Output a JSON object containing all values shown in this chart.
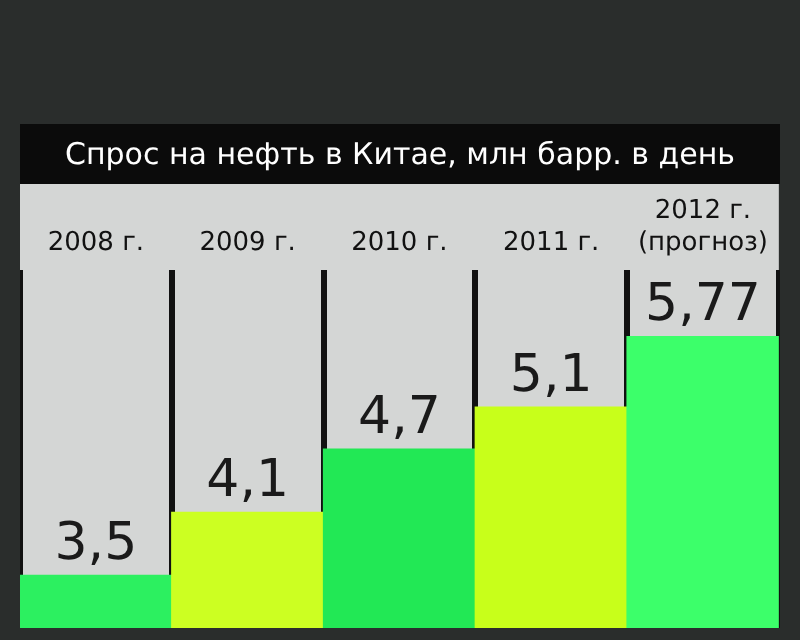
{
  "chart_data": {
    "type": "bar",
    "title": "Спрос на нефть в Китае, млн барр. в день",
    "categories": [
      "2008 г.",
      "2009 г.",
      "2010 г.",
      "2011 г.",
      "2012 г. (прогноз)"
    ],
    "values": [
      3.5,
      4.1,
      4.7,
      5.1,
      5.77
    ],
    "colors": [
      "#2cf060",
      "#ccff22",
      "#22e855",
      "#c8ff1a",
      "#3cff6a"
    ],
    "value_labels": [
      "3,5",
      "4,1",
      "4,7",
      "5,1",
      "5,77"
    ],
    "ylim": [
      3,
      6.4
    ],
    "grid": "x",
    "tick_labels": "x",
    "legend": false
  }
}
